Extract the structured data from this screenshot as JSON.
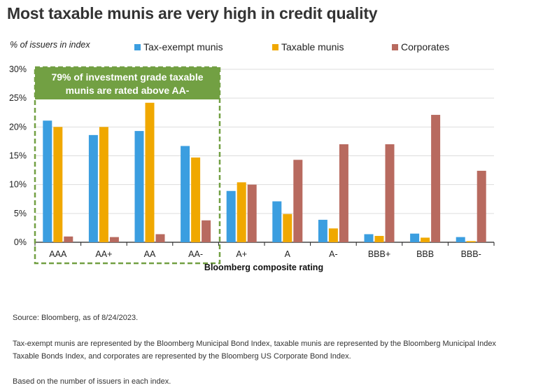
{
  "title": "Most taxable munis are very high in credit quality",
  "y_unit_label": "% of issuers  in index",
  "legend": [
    {
      "label": "Tax-exempt munis",
      "color": "#3b9ee0"
    },
    {
      "label": "Taxable munis",
      "color": "#f0a800"
    },
    {
      "label": "Corporates",
      "color": "#b86a5f"
    }
  ],
  "callout": {
    "line1": "79% of investment grade taxable",
    "line2": "munis are rated above AA-",
    "bg_color": "#72a043",
    "border_color": "#72a043"
  },
  "chart_data": {
    "type": "bar",
    "title": "Most taxable munis are very high in credit quality",
    "xlabel": "Bloomberg  composite rating",
    "ylabel": "% of issuers  in index",
    "ylim": [
      0,
      30
    ],
    "yticks": [
      "0%",
      "5%",
      "10%",
      "15%",
      "20%",
      "25%",
      "30%"
    ],
    "grid": true,
    "legend_position": "top",
    "categories": [
      "AAA",
      "AA+",
      "AA",
      "AA-",
      "A+",
      "A",
      "A-",
      "BBB+",
      "BBB",
      "BBB-"
    ],
    "series": [
      {
        "name": "Tax-exempt munis",
        "color": "#3b9ee0",
        "values": [
          21.1,
          18.6,
          19.3,
          16.7,
          8.9,
          7.1,
          3.9,
          1.4,
          1.5,
          0.9
        ]
      },
      {
        "name": "Taxable munis",
        "color": "#f0a800",
        "values": [
          20.0,
          20.0,
          24.2,
          14.7,
          10.4,
          4.9,
          2.4,
          1.1,
          0.8,
          0.2
        ]
      },
      {
        "name": "Corporates",
        "color": "#b86a5f",
        "values": [
          1.0,
          0.9,
          1.4,
          3.8,
          10.0,
          14.3,
          17.0,
          17.0,
          22.1,
          12.4
        ]
      }
    ]
  },
  "footnotes": {
    "source": "Source: Bloomberg, as of 8/24/2023.",
    "desc_line1": "Tax-exempt munis are represented by the Bloomberg Municipal Bond Index, taxable munis are represented by the Bloomberg Municipal Index",
    "desc_line2": "Taxable Bonds Index, and corporates are represented by the Bloomberg US Corporate Bond Index.",
    "basis": "Based on the number of issuers in each index."
  }
}
